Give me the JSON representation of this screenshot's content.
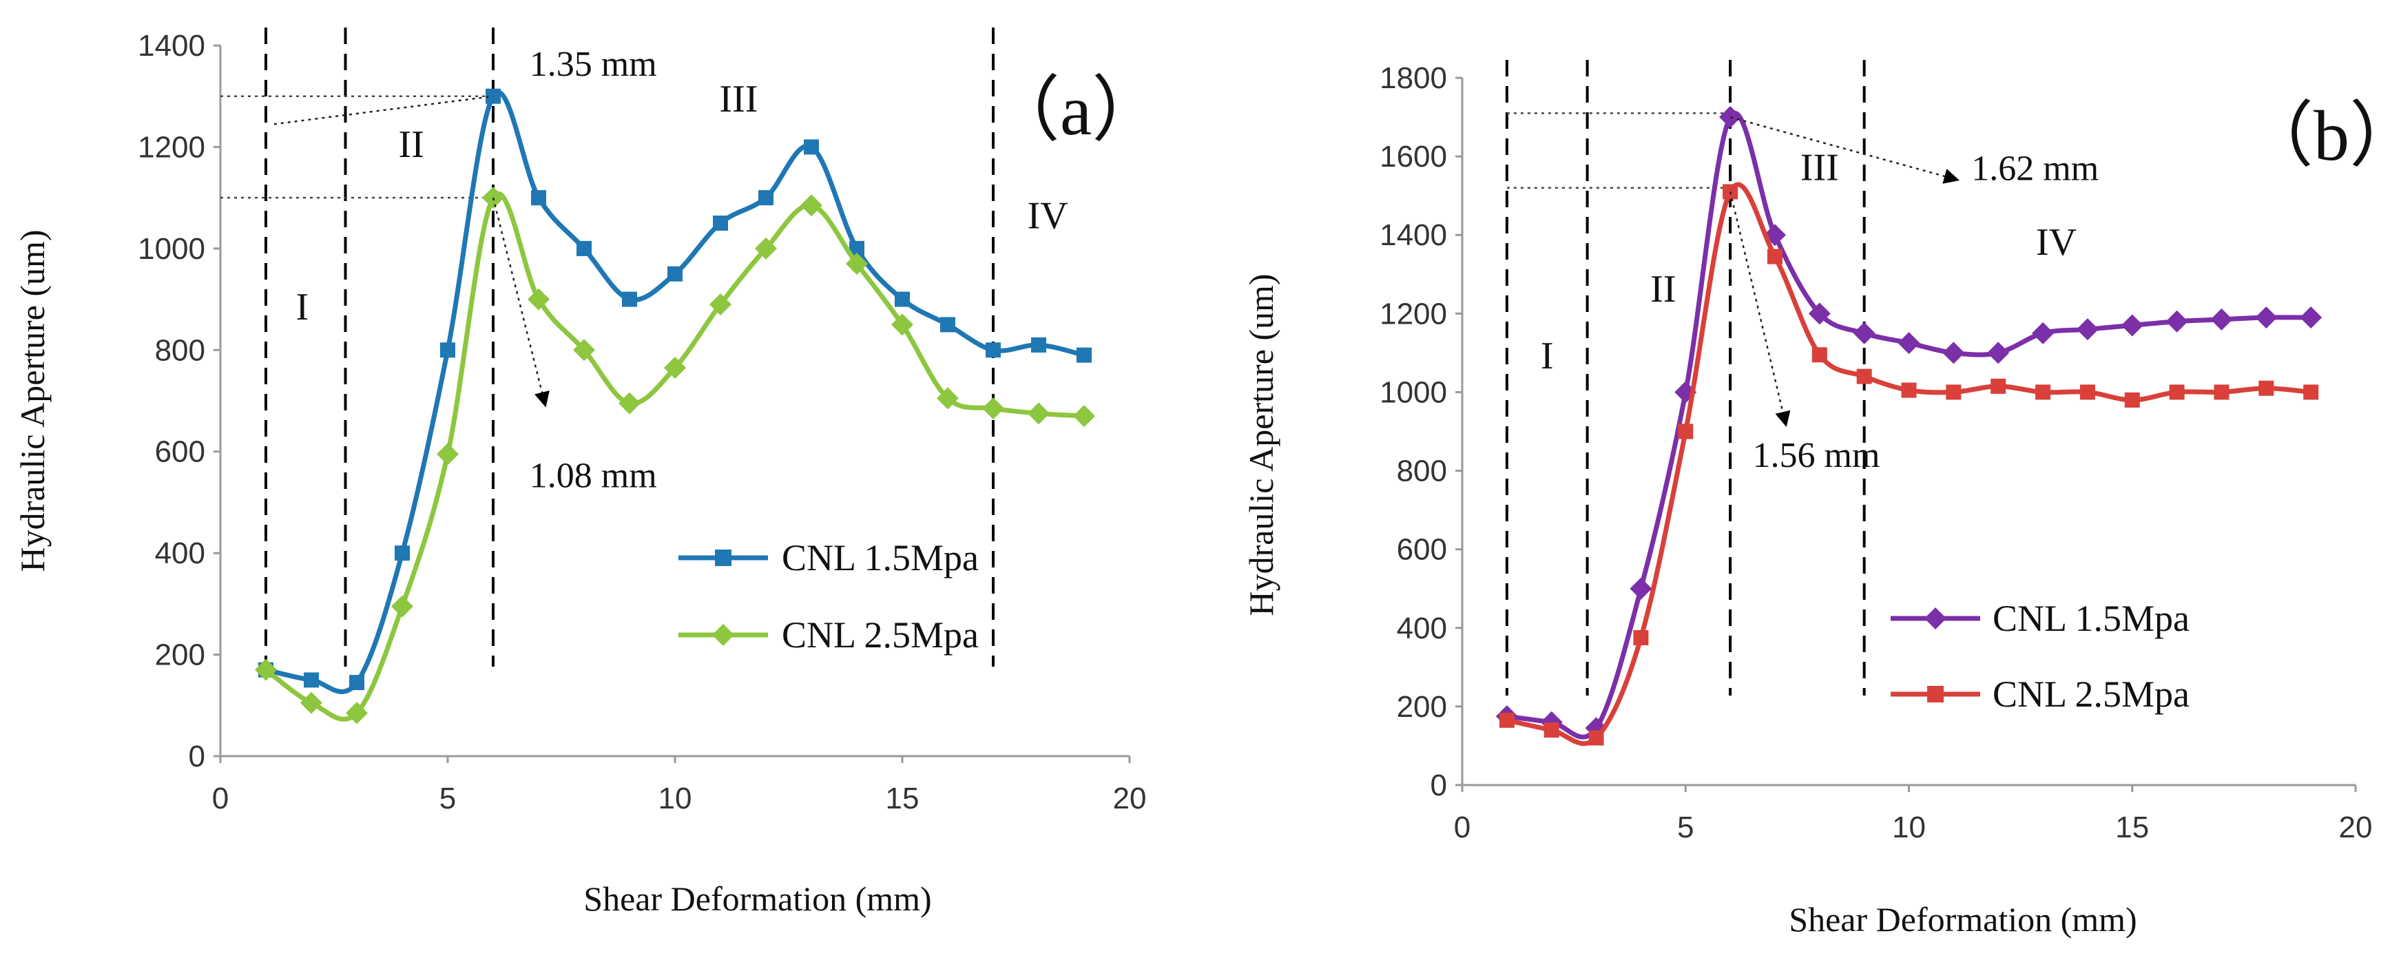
{
  "chart_data": [
    {
      "type": "line",
      "panel_label": "（a）",
      "xlabel": "Shear Deformation (mm)",
      "ylabel": "Hydraulic Aperture (um)",
      "xlim": [
        0,
        20
      ],
      "ylim": [
        0,
        1400
      ],
      "xticks": [
        0,
        5,
        10,
        15,
        20
      ],
      "yticks": [
        0,
        200,
        400,
        600,
        800,
        1000,
        1200,
        1400
      ],
      "legend_position": "center-right",
      "series": [
        {
          "name": "CNL 1.5Mpa",
          "color": "#1f77b4",
          "marker": "square",
          "x": [
            1,
            2,
            3,
            4,
            5,
            6,
            7,
            8,
            9,
            10,
            11,
            12,
            13,
            14,
            15,
            16,
            17,
            18,
            19
          ],
          "values": [
            170,
            150,
            145,
            400,
            800,
            1300,
            1100,
            1000,
            900,
            950,
            1050,
            1100,
            1200,
            1000,
            900,
            850,
            800,
            810,
            790
          ]
        },
        {
          "name": "CNL 2.5Mpa",
          "color": "#8dc63f",
          "marker": "diamond",
          "x": [
            1,
            2,
            3,
            4,
            5,
            6,
            7,
            8,
            9,
            10,
            11,
            12,
            13,
            14,
            15,
            16,
            17,
            18,
            19
          ],
          "values": [
            170,
            105,
            85,
            295,
            595,
            1100,
            900,
            800,
            695,
            765,
            890,
            1000,
            1085,
            970,
            850,
            705,
            685,
            675,
            670
          ]
        }
      ],
      "region_lines_x": [
        1.0,
        2.75,
        6.0,
        17.0
      ],
      "region_labels": [
        {
          "text": "I",
          "x": 1.8,
          "y": 860
        },
        {
          "text": "II",
          "x": 4.2,
          "y": 1180
        },
        {
          "text": "III",
          "x": 11.4,
          "y": 1270
        },
        {
          "text": "IV",
          "x": 18.2,
          "y": 1040
        }
      ],
      "reference_lines": [
        {
          "x1": 0,
          "x2": 6.0,
          "y": 1300
        },
        {
          "x1": 0,
          "x2": 6.0,
          "y": 1100
        }
      ],
      "annotations": [
        {
          "text": "1.35 mm",
          "x": 6.8,
          "y": 1340
        },
        {
          "text": "1.08 mm",
          "x": 6.8,
          "y": 530
        }
      ]
    },
    {
      "type": "line",
      "panel_label": "（b）",
      "xlabel": "Shear Deformation (mm)",
      "ylabel": "Hydraulic Aperture (um)",
      "xlim": [
        0,
        20
      ],
      "ylim": [
        0,
        1800
      ],
      "xticks": [
        0,
        5,
        10,
        15,
        20
      ],
      "yticks": [
        0,
        200,
        400,
        600,
        800,
        1000,
        1200,
        1400,
        1600,
        1800
      ],
      "legend_position": "lower-right",
      "series": [
        {
          "name": "CNL 1.5Mpa",
          "color": "#7b2fa8",
          "marker": "diamond",
          "x": [
            1,
            2,
            3,
            4,
            5,
            6,
            7,
            8,
            9,
            10,
            11,
            12,
            13,
            14,
            15,
            16,
            17,
            18,
            19
          ],
          "values": [
            175,
            160,
            145,
            500,
            1000,
            1700,
            1400,
            1200,
            1150,
            1125,
            1100,
            1100,
            1150,
            1160,
            1170,
            1180,
            1185,
            1190,
            1190
          ]
        },
        {
          "name": "CNL 2.5Mpa",
          "color": "#d9403a",
          "marker": "square",
          "x": [
            1,
            2,
            3,
            4,
            5,
            6,
            7,
            8,
            9,
            10,
            11,
            12,
            13,
            14,
            15,
            16,
            17,
            18,
            19
          ],
          "values": [
            165,
            140,
            120,
            375,
            900,
            1510,
            1345,
            1095,
            1040,
            1005,
            1000,
            1015,
            1000,
            1000,
            980,
            1000,
            1000,
            1010,
            1000
          ]
        }
      ],
      "region_lines_x": [
        1.0,
        2.8,
        6.0,
        9.0
      ],
      "region_labels": [
        {
          "text": "I",
          "x": 1.9,
          "y": 1060
        },
        {
          "text": "II",
          "x": 4.5,
          "y": 1230
        },
        {
          "text": "III",
          "x": 8.0,
          "y": 1540
        },
        {
          "text": "IV",
          "x": 13.3,
          "y": 1350
        }
      ],
      "reference_lines": [
        {
          "x1": 1.0,
          "x2": 6.0,
          "y": 1710
        },
        {
          "x1": 1.0,
          "x2": 6.0,
          "y": 1520
        }
      ],
      "annotations": [
        {
          "text": "1.62 mm",
          "x": 11.4,
          "y": 1540
        },
        {
          "text": "1.56 mm",
          "x": 6.5,
          "y": 810
        }
      ]
    }
  ]
}
